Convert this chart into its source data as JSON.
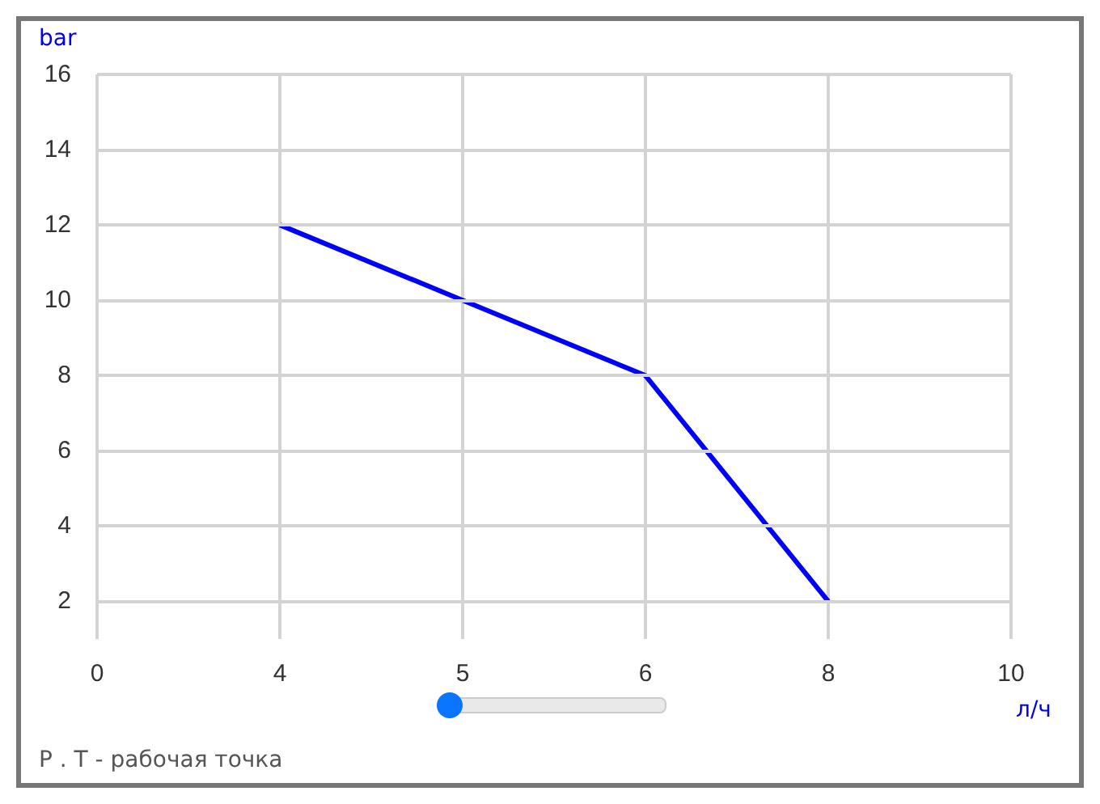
{
  "chart_data": {
    "type": "line",
    "xlabel": "л/ч",
    "ylabel": "bar",
    "categories": [
      "0",
      "4",
      "5",
      "6",
      "8",
      "10"
    ],
    "series": [
      {
        "color": "#0000ff",
        "values": [
          null,
          12,
          10,
          8,
          2,
          null
        ]
      }
    ],
    "ylim": [
      1,
      16
    ],
    "yticks": [
      2,
      4,
      6,
      8,
      10,
      12,
      14,
      16
    ],
    "grid": true,
    "marker": "none",
    "line_style": "solid",
    "annotations": [
      "P . T - рабочая точка"
    ]
  }
}
